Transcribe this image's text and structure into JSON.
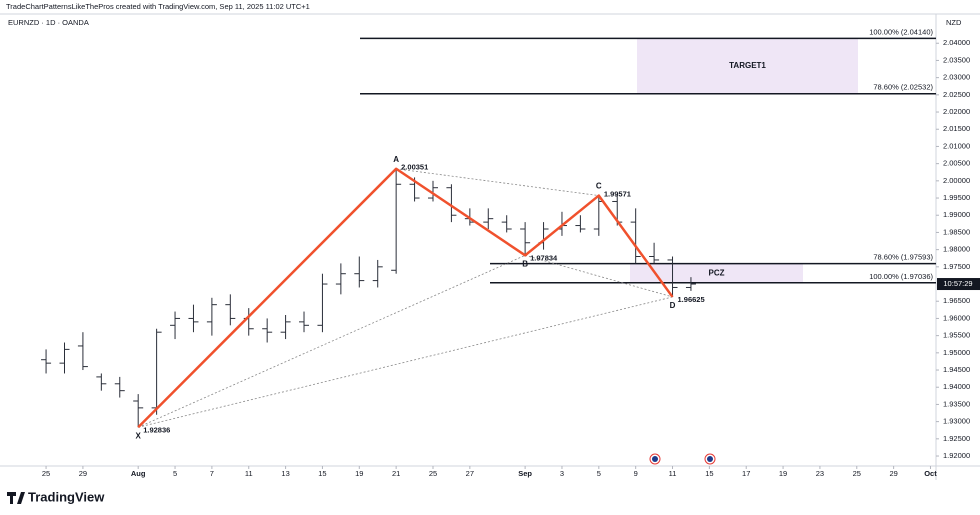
{
  "header": {
    "attribution": "TradeChartPatternsLikeThePros created with TradingView.com, Sep 11, 2025 11:02 UTC+1"
  },
  "chart_data": {
    "type": "ohlc",
    "symbol": "EURNZD · 1D · OANDA",
    "currency": "NZD",
    "color": "#2a2e39",
    "bars": [
      [
        1.948,
        1.951,
        1.944,
        1.947
      ],
      [
        1.947,
        1.953,
        1.944,
        1.951
      ],
      [
        1.952,
        1.956,
        1.945,
        1.946
      ],
      [
        1.943,
        1.944,
        1.939,
        1.941
      ],
      [
        1.941,
        1.943,
        1.937,
        1.939
      ],
      [
        1.936,
        1.938,
        1.92836,
        1.934
      ],
      [
        1.934,
        1.957,
        1.932,
        1.956
      ],
      [
        1.958,
        1.962,
        1.954,
        1.96
      ],
      [
        1.96,
        1.964,
        1.956,
        1.959
      ],
      [
        1.959,
        1.966,
        1.955,
        1.964
      ],
      [
        1.964,
        1.967,
        1.958,
        1.96
      ],
      [
        1.96,
        1.963,
        1.955,
        1.957
      ],
      [
        1.957,
        1.96,
        1.953,
        1.956
      ],
      [
        1.956,
        1.961,
        1.954,
        1.959
      ],
      [
        1.959,
        1.962,
        1.956,
        1.958
      ],
      [
        1.958,
        1.973,
        1.956,
        1.97
      ],
      [
        1.97,
        1.976,
        1.967,
        1.973
      ],
      [
        1.973,
        1.978,
        1.969,
        1.971
      ],
      [
        1.971,
        1.977,
        1.969,
        1.975
      ],
      [
        1.974,
        2.00351,
        1.973,
        1.999
      ],
      [
        1.999,
        2.001,
        1.994,
        1.995
      ],
      [
        1.995,
        2.0,
        1.994,
        1.998
      ],
      [
        1.998,
        1.999,
        1.988,
        1.99
      ],
      [
        1.989,
        1.992,
        1.987,
        1.988
      ],
      [
        1.988,
        1.992,
        1.986,
        1.989
      ],
      [
        1.988,
        1.99,
        1.985,
        1.986
      ],
      [
        1.986,
        1.988,
        1.97834,
        1.982
      ],
      [
        1.982,
        1.988,
        1.98,
        1.986
      ],
      [
        1.986,
        1.991,
        1.984,
        1.987
      ],
      [
        1.987,
        1.99,
        1.985,
        1.986
      ],
      [
        1.986,
        1.99571,
        1.984,
        1.994
      ],
      [
        1.994,
        1.996,
        1.987,
        1.988
      ],
      [
        1.988,
        1.992,
        1.976,
        1.978
      ],
      [
        1.978,
        1.982,
        1.976,
        1.977
      ],
      [
        1.977,
        1.978,
        1.96625,
        1.969
      ],
      [
        1.969,
        1.972,
        1.968,
        1.97
      ]
    ],
    "xlim": [
      -2.5,
      48.3
    ],
    "xticks": [
      {
        "value": 0,
        "label": "25"
      },
      {
        "value": 2,
        "label": "29"
      },
      {
        "value": 5,
        "label": "Aug"
      },
      {
        "value": 7,
        "label": "5"
      },
      {
        "value": 9,
        "label": "7"
      },
      {
        "value": 11,
        "label": "11"
      },
      {
        "value": 13,
        "label": "13"
      },
      {
        "value": 15,
        "label": "15"
      },
      {
        "value": 17,
        "label": "19"
      },
      {
        "value": 19,
        "label": "21"
      },
      {
        "value": 21,
        "label": "25"
      },
      {
        "value": 23,
        "label": "27"
      },
      {
        "value": 26,
        "label": "Sep"
      },
      {
        "value": 28,
        "label": "3"
      },
      {
        "value": 30,
        "label": "5"
      },
      {
        "value": 32,
        "label": "9"
      },
      {
        "value": 34,
        "label": "11"
      },
      {
        "value": 36,
        "label": "15"
      },
      {
        "value": 38,
        "label": "17"
      },
      {
        "value": 40,
        "label": "19"
      },
      {
        "value": 42,
        "label": "23"
      },
      {
        "value": 44,
        "label": "25"
      },
      {
        "value": 46,
        "label": "29"
      },
      {
        "value": 48,
        "label": "Oct"
      }
    ],
    "ylim": [
      1.9171,
      2.0485
    ],
    "yticks": [
      {
        "value": 2.04,
        "label": "2.04000"
      },
      {
        "value": 2.035,
        "label": "2.03500"
      },
      {
        "value": 2.03,
        "label": "2.03000"
      },
      {
        "value": 2.025,
        "label": "2.02500"
      },
      {
        "value": 2.02,
        "label": "2.02000"
      },
      {
        "value": 2.015,
        "label": "2.01500"
      },
      {
        "value": 2.01,
        "label": "2.01000"
      },
      {
        "value": 2.005,
        "label": "2.00500"
      },
      {
        "value": 2.0,
        "label": "2.00000"
      },
      {
        "value": 1.995,
        "label": "1.99500"
      },
      {
        "value": 1.99,
        "label": "1.99000"
      },
      {
        "value": 1.985,
        "label": "1.98500"
      },
      {
        "value": 1.98,
        "label": "1.98000"
      },
      {
        "value": 1.975,
        "label": "1.97500"
      },
      {
        "value": 1.965,
        "label": "1.96500"
      },
      {
        "value": 1.96,
        "label": "1.96000"
      },
      {
        "value": 1.955,
        "label": "1.95500"
      },
      {
        "value": 1.95,
        "label": "1.95000"
      },
      {
        "value": 1.945,
        "label": "1.94500"
      },
      {
        "value": 1.94,
        "label": "1.94000"
      },
      {
        "value": 1.935,
        "label": "1.93500"
      },
      {
        "value": 1.93,
        "label": "1.93000"
      },
      {
        "value": 1.925,
        "label": "1.92500"
      },
      {
        "value": 1.92,
        "label": "1.92000"
      }
    ],
    "grid": false,
    "pattern": {
      "color": "#f0512d",
      "points": [
        {
          "label": "X",
          "price": 1.92836
        },
        {
          "label": "A",
          "price": 2.00351
        },
        {
          "label": "B",
          "price": 1.97834
        },
        {
          "label": "C",
          "price": 1.99571
        },
        {
          "label": "D",
          "price": 1.96625
        }
      ]
    },
    "zones": [
      {
        "label": "TARGET1",
        "levels": [
          {
            "label": "100.00% (2.04140)",
            "price": 2.0414
          },
          {
            "label": "78.60% (2.02532)",
            "price": 2.02532
          }
        ]
      },
      {
        "label": "PCZ",
        "levels": [
          {
            "label": "78.60% (1.97593)",
            "price": 1.97593
          },
          {
            "label": "100.00% (1.97036)",
            "price": 1.97036
          }
        ]
      }
    ],
    "countdown": "10:57:29"
  },
  "footer": {
    "brand": "TradingView"
  }
}
